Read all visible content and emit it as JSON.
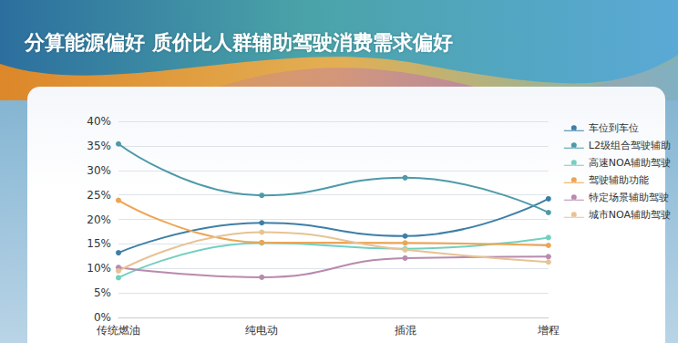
{
  "chart_data": {
    "type": "line",
    "title": "分算能源偏好 质价比人群辅助驾驶消费需求偏好",
    "categories": [
      "传统燃油",
      "纯电动",
      "插混",
      "增程"
    ],
    "series": [
      {
        "name": "车位到车位",
        "color": "#3d7fa6",
        "values": [
          13.2,
          19.3,
          16.6,
          24.2
        ]
      },
      {
        "name": "L2级组合驾驶辅助",
        "color": "#4d9aa8",
        "values": [
          35.4,
          24.9,
          28.5,
          21.4
        ]
      },
      {
        "name": "高速NOA辅助驾驶",
        "color": "#72d0bf",
        "values": [
          8.1,
          15.2,
          14.0,
          16.3
        ]
      },
      {
        "name": "驾驶辅助功能",
        "color": "#eea452",
        "values": [
          23.9,
          15.3,
          15.2,
          14.7
        ]
      },
      {
        "name": "特定场景辅助驾驶",
        "color": "#b98aae",
        "values": [
          10.2,
          8.2,
          12.1,
          12.4
        ]
      },
      {
        "name": "城市NOA辅助驾驶",
        "color": "#e6c394",
        "values": [
          9.5,
          17.4,
          13.8,
          11.3
        ]
      }
    ],
    "ylim": [
      0,
      40
    ],
    "yticks": [
      {
        "value": 0,
        "label": "0%"
      },
      {
        "value": 5,
        "label": "5%"
      },
      {
        "value": 10,
        "label": "10%"
      },
      {
        "value": 15,
        "label": "15%"
      },
      {
        "value": 20,
        "label": "20%"
      },
      {
        "value": 25,
        "label": "25%"
      },
      {
        "value": 30,
        "label": "30%"
      },
      {
        "value": 35,
        "label": "35%"
      },
      {
        "value": 40,
        "label": "40%"
      }
    ],
    "grid": true,
    "legend": "right",
    "marker": "circle",
    "line_style": "smooth"
  }
}
